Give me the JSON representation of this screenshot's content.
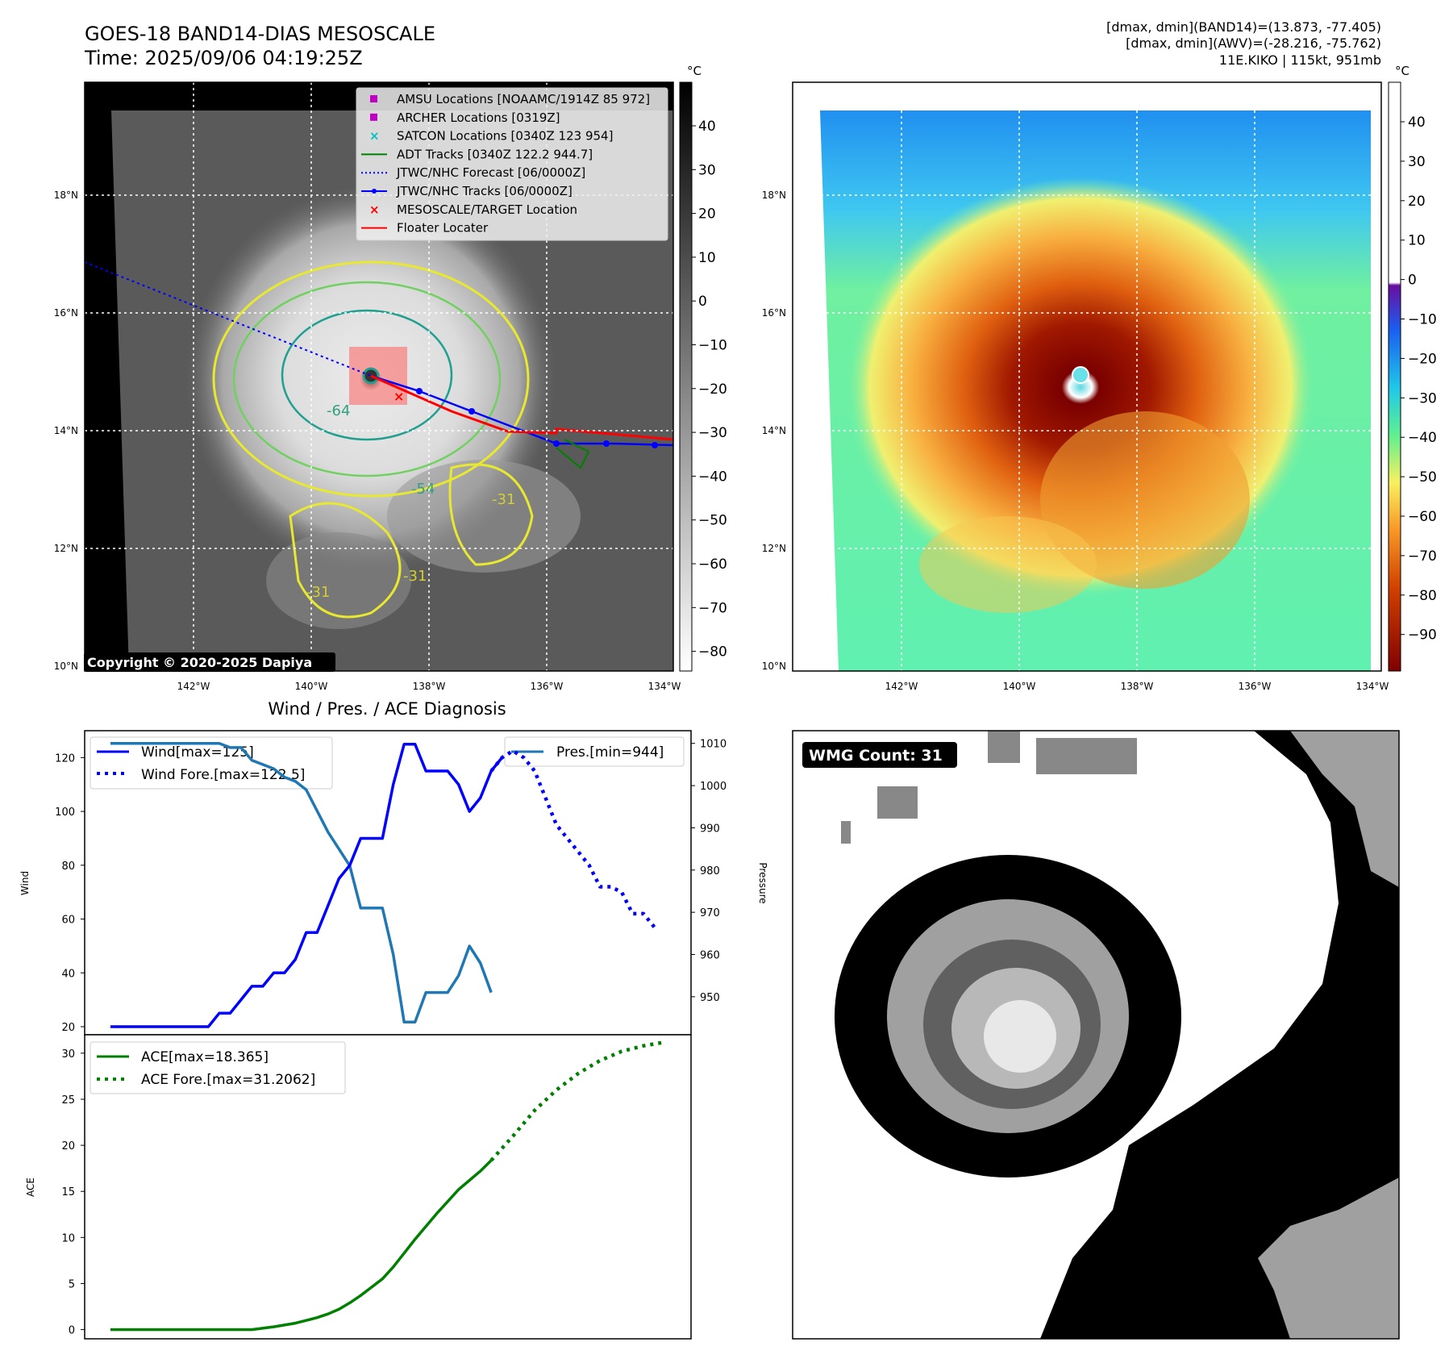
{
  "header": {
    "title_line1": "GOES-18 BAND14-DIAS MESOSCALE",
    "title_line2": "Time: 2025/09/06 04:19:25Z",
    "info_line1": "[dmax, dmin](BAND14)=(13.873, -77.405)",
    "info_line2": "[dmax, dmin](AWV)=(-28.216, -75.762)",
    "info_line3": "11E.KIKO | 115kt, 951mb"
  },
  "maps": {
    "lat_labels": [
      "18°N",
      "16°N",
      "14°N",
      "12°N",
      "10°N"
    ],
    "lon_labels": [
      "142°W",
      "140°W",
      "138°W",
      "136°W",
      "134°W"
    ],
    "copyright": "Copyright © 2020-2025 Dapiya",
    "contour_labels": [
      "-64",
      "-54",
      "-31",
      "-31",
      "-31"
    ],
    "legend": [
      {
        "label": "AMSU Locations [NOAAMC/1914Z 85 972]",
        "color": "#c000c0",
        "marker": "square"
      },
      {
        "label": "ARCHER Locations [0319Z]",
        "color": "#c000c0",
        "marker": "square"
      },
      {
        "label": "SATCON Locations [0340Z 123 954]",
        "color": "#00c0c0",
        "marker": "x"
      },
      {
        "label": "ADT Tracks [0340Z 122.2 944.7]",
        "color": "#008000",
        "marker": "line"
      },
      {
        "label": "JTWC/NHC Forecast [06/0000Z]",
        "color": "#0000ff",
        "marker": "dotted"
      },
      {
        "label": "JTWC/NHC Tracks [06/0000Z]",
        "color": "#0000ff",
        "marker": "line-dot"
      },
      {
        "label": "MESOSCALE/TARGET Location",
        "color": "#ff0000",
        "marker": "x"
      },
      {
        "label": "Floater Locater",
        "color": "#ff0000",
        "marker": "line"
      }
    ],
    "colorbar1": {
      "unit": "°C",
      "ticks": [
        "40",
        "30",
        "20",
        "10",
        "0",
        "−10",
        "−20",
        "−30",
        "−40",
        "−50",
        "−60",
        "−70",
        "−80"
      ]
    },
    "colorbar2": {
      "unit": "°C",
      "ticks": [
        "40",
        "30",
        "20",
        "10",
        "0",
        "−10",
        "−20",
        "−30",
        "−40",
        "−50",
        "−60",
        "−70",
        "−80",
        "−90"
      ]
    },
    "wmg_label": "WMG Count: 31"
  },
  "chart_data": [
    {
      "type": "line",
      "title": "Wind / Pres. / ACE Diagnosis",
      "ylabel": "Wind",
      "ylabel_right": "Pressure",
      "ylim": [
        17,
        130
      ],
      "ylim_right": [
        941,
        1013
      ],
      "yticks": [
        20,
        40,
        60,
        80,
        100,
        120
      ],
      "yticks_right": [
        950,
        960,
        970,
        980,
        990,
        1000,
        1010
      ],
      "series": [
        {
          "name": "Wind[max=125]",
          "color": "#0000ff",
          "style": "solid",
          "x": [
            0,
            9,
            10,
            11,
            12,
            13,
            14,
            15,
            16,
            17,
            18,
            19,
            20,
            21,
            22,
            23,
            24,
            25,
            26,
            27,
            28,
            29,
            30,
            31,
            32,
            33,
            34,
            35,
            36
          ],
          "values": [
            20,
            20,
            25,
            25,
            30,
            35,
            35,
            40,
            40,
            45,
            55,
            55,
            65,
            75,
            80,
            90,
            90,
            90,
            110,
            125,
            125,
            115,
            115,
            115,
            110,
            100,
            105,
            115,
            120
          ]
        },
        {
          "name": "Wind Fore.[max=122.5]",
          "color": "#0000ff",
          "style": "dotted",
          "x": [
            35,
            36,
            37,
            38,
            39,
            40,
            41,
            42,
            43,
            44,
            45,
            46,
            47,
            48,
            49,
            50
          ],
          "values": [
            115,
            120,
            122.5,
            120,
            115,
            105,
            95,
            90,
            85,
            80,
            72,
            72,
            70,
            62,
            62,
            57
          ]
        }
      ],
      "series_right": [
        {
          "name": "Pres.[min=944]",
          "color": "#1f77b4",
          "style": "solid",
          "x": [
            0,
            10,
            11,
            12,
            13,
            14,
            15,
            16,
            17,
            18,
            19,
            20,
            21,
            22,
            23,
            24,
            25,
            26,
            27,
            28,
            29,
            30,
            31,
            32,
            33,
            34,
            35
          ],
          "values": [
            1010,
            1010,
            1009,
            1009,
            1006,
            1005,
            1004,
            1002,
            1001,
            999,
            994,
            989,
            985,
            981,
            971,
            971,
            971,
            960,
            944,
            944,
            951,
            951,
            951,
            955,
            962,
            958,
            951
          ]
        }
      ]
    },
    {
      "type": "line",
      "ylabel": "ACE",
      "ylim": [
        -1,
        32
      ],
      "yticks": [
        0,
        5,
        10,
        15,
        20,
        25,
        30
      ],
      "series": [
        {
          "name": "ACE[max=18.365]",
          "color": "#008000",
          "style": "solid",
          "x": [
            0,
            13,
            14,
            15,
            16,
            17,
            18,
            19,
            20,
            21,
            22,
            23,
            24,
            25,
            26,
            27,
            28,
            29,
            30,
            31,
            32,
            33,
            34,
            35
          ],
          "values": [
            0,
            0,
            0.15,
            0.3,
            0.5,
            0.7,
            1.0,
            1.3,
            1.7,
            2.2,
            2.9,
            3.7,
            4.6,
            5.5,
            6.8,
            8.3,
            9.8,
            11.2,
            12.6,
            13.9,
            15.2,
            16.2,
            17.2,
            18.365
          ]
        },
        {
          "name": "ACE Fore.[max=31.2062]",
          "color": "#008000",
          "style": "dotted",
          "x": [
            35,
            37,
            39,
            41,
            43,
            45,
            47,
            49,
            51
          ],
          "values": [
            18.365,
            21.0,
            23.8,
            26.0,
            27.8,
            29.2,
            30.2,
            30.8,
            31.2062
          ]
        }
      ]
    }
  ]
}
